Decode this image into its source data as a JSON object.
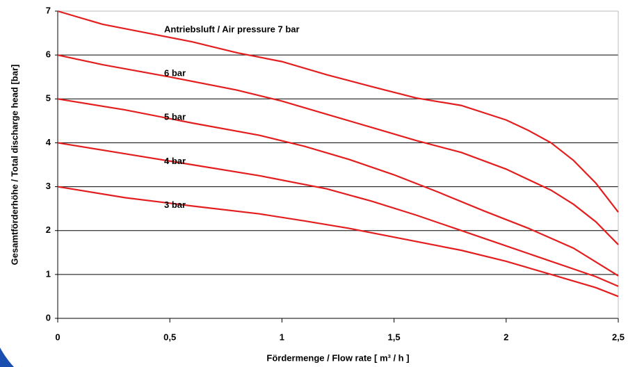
{
  "chart_data": {
    "type": "line",
    "xlabel": "Fördermenge / Flow rate [ m³ / h ]",
    "ylabel": "Gesamtförderhöhe / Total discharge head [bar]",
    "xlim": [
      0,
      2.5
    ],
    "xticks": [
      0,
      {
        "value": 0.5,
        "label": "0,5"
      },
      1,
      {
        "value": 1.5,
        "label": "1,5"
      },
      2,
      {
        "value": 2.5,
        "label": "2,5"
      }
    ],
    "ylim": [
      0,
      7
    ],
    "yticks": [
      0,
      1,
      2,
      3,
      4,
      5,
      6,
      7
    ],
    "grid": true,
    "series": [
      {
        "name": "Antriebsluft / Air pressure 7 bar",
        "color": "#e41e1e",
        "x": [
          0,
          0.2,
          0.4,
          0.6,
          0.8,
          1.0,
          1.2,
          1.4,
          1.6,
          1.8,
          2.0,
          2.1,
          2.2,
          2.3,
          2.4,
          2.5
        ],
        "values": [
          7,
          6.7,
          6.5,
          6.3,
          6.05,
          5.85,
          5.55,
          5.28,
          5.02,
          4.85,
          4.52,
          4.28,
          4.0,
          3.6,
          3.08,
          2.42
        ]
      },
      {
        "name": "6 bar",
        "color": "#e41e1e",
        "x": [
          0,
          0.2,
          0.5,
          0.8,
          1.0,
          1.2,
          1.4,
          1.6,
          1.8,
          2.0,
          2.2,
          2.3,
          2.4,
          2.5
        ],
        "values": [
          6,
          5.78,
          5.5,
          5.2,
          4.95,
          4.65,
          4.35,
          4.05,
          3.78,
          3.4,
          2.92,
          2.6,
          2.2,
          1.68
        ]
      },
      {
        "name": "5 bar",
        "color": "#e41e1e",
        "x": [
          0,
          0.3,
          0.6,
          0.9,
          1.1,
          1.3,
          1.5,
          1.7,
          1.9,
          2.1,
          2.3,
          2.5
        ],
        "values": [
          5,
          4.75,
          4.45,
          4.17,
          3.92,
          3.62,
          3.27,
          2.87,
          2.45,
          2.05,
          1.6,
          0.97
        ]
      },
      {
        "name": "4 bar",
        "color": "#e41e1e",
        "x": [
          0,
          0.3,
          0.6,
          0.9,
          1.2,
          1.4,
          1.6,
          1.8,
          2.0,
          2.2,
          2.4,
          2.5
        ],
        "values": [
          4,
          3.75,
          3.5,
          3.25,
          2.95,
          2.67,
          2.35,
          2.0,
          1.65,
          1.3,
          0.95,
          0.73
        ]
      },
      {
        "name": "3 bar",
        "color": "#e41e1e",
        "x": [
          0,
          0.3,
          0.6,
          0.9,
          1.1,
          1.3,
          1.5,
          1.8,
          2.0,
          2.2,
          2.4,
          2.5
        ],
        "values": [
          3,
          2.75,
          2.56,
          2.38,
          2.22,
          2.05,
          1.85,
          1.55,
          1.3,
          1.0,
          0.7,
          0.5
        ]
      }
    ]
  }
}
